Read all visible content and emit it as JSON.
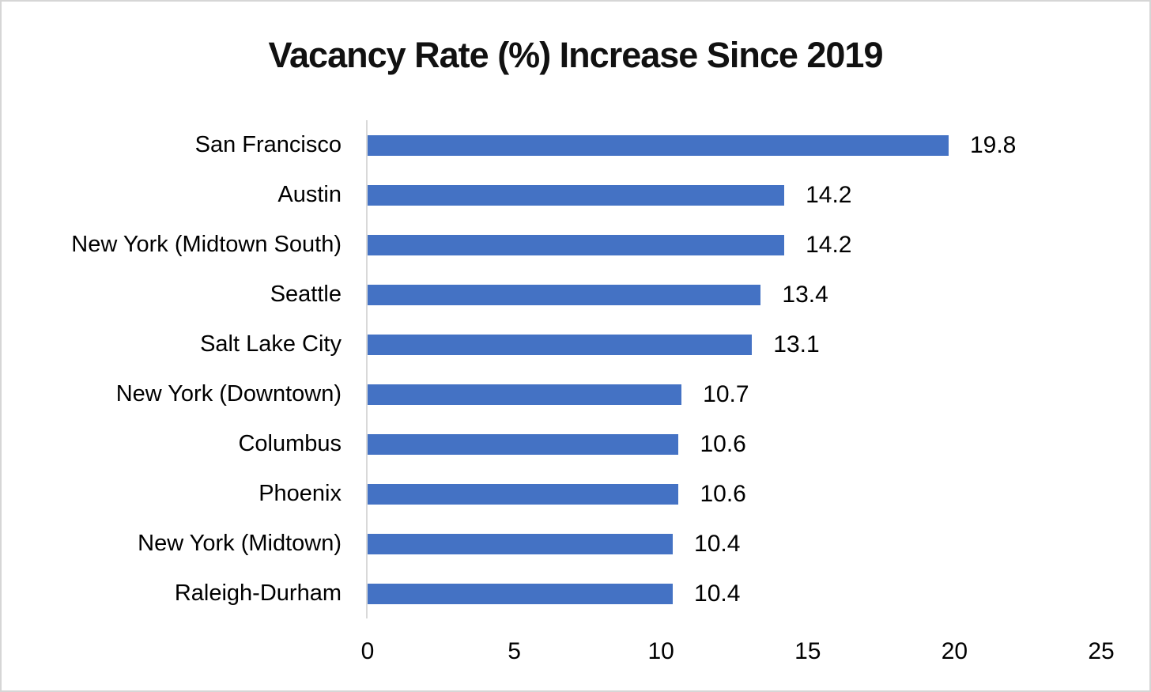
{
  "chart_data": {
    "type": "bar",
    "orientation": "horizontal",
    "title": "Vacancy Rate (%) Increase Since 2019",
    "categories": [
      "San Francisco",
      "Austin",
      "New York (Midtown South)",
      "Seattle",
      "Salt Lake City",
      "New York (Downtown)",
      "Columbus",
      "Phoenix",
      "New York (Midtown)",
      "Raleigh-Durham"
    ],
    "values": [
      19.8,
      14.2,
      14.2,
      13.4,
      13.1,
      10.7,
      10.6,
      10.6,
      10.4,
      10.4
    ],
    "value_labels": [
      "19.8",
      "14.2",
      "14.2",
      "13.4",
      "13.1",
      "10.7",
      "10.6",
      "10.6",
      "10.4",
      "10.4"
    ],
    "xlabel": "",
    "ylabel": "",
    "xlim": [
      0,
      25
    ],
    "x_ticks": [
      "0",
      "5",
      "10",
      "15",
      "20",
      "25"
    ],
    "grid": false,
    "legend": false,
    "bar_color": "#4472C4",
    "axis_line_color": "#d9d9d9",
    "title_color": "#111111",
    "text_color": "#000000"
  }
}
